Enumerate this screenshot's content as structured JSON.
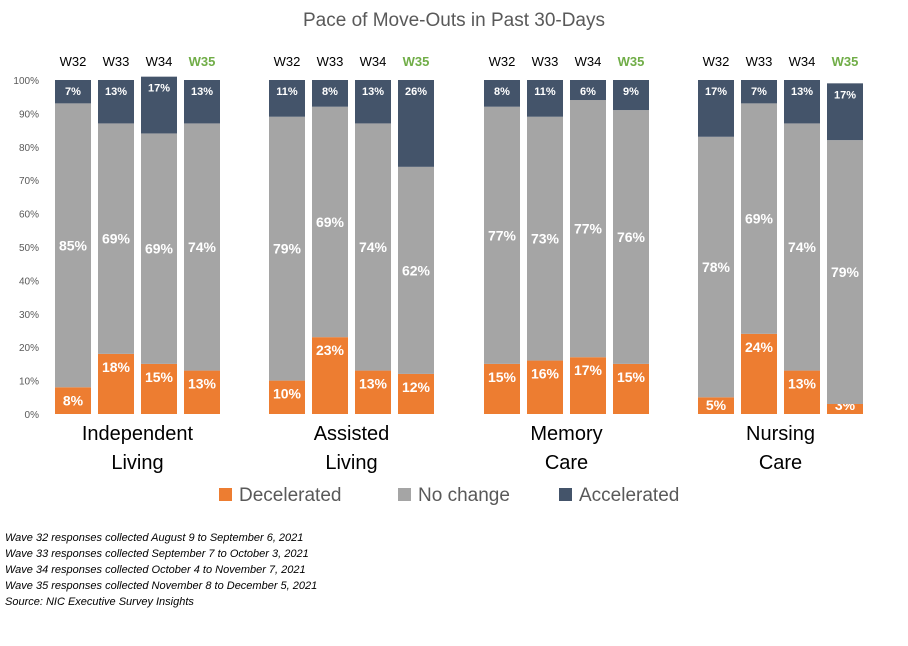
{
  "chart_data": {
    "type": "stacked-bar",
    "title": "Pace of Move-Outs in Past 30-Days",
    "ylim": [
      0,
      100
    ],
    "yticks": [
      "0%",
      "10%",
      "20%",
      "30%",
      "40%",
      "50%",
      "60%",
      "70%",
      "80%",
      "90%",
      "100%"
    ],
    "series": [
      {
        "name": "Decelerated",
        "color": "#ED7D31"
      },
      {
        "name": "No change",
        "color": "#A5A5A5"
      },
      {
        "name": "Accelerated",
        "color": "#44546A"
      }
    ],
    "groups": [
      {
        "label_lines": [
          "Independent",
          "Living"
        ],
        "bars": [
          {
            "wave": "W32",
            "values": [
              8,
              85,
              7
            ],
            "labels": [
              "8%",
              "85%",
              "7%"
            ]
          },
          {
            "wave": "W33",
            "values": [
              18,
              69,
              13
            ],
            "labels": [
              "18%",
              "69%",
              "13%"
            ]
          },
          {
            "wave": "W34",
            "values": [
              15,
              69,
              17
            ],
            "labels": [
              "15%",
              "69%",
              "17%"
            ]
          },
          {
            "wave": "W35",
            "values": [
              13,
              74,
              13
            ],
            "labels": [
              "13%",
              "74%",
              "13%"
            ]
          }
        ]
      },
      {
        "label_lines": [
          "Assisted",
          "Living"
        ],
        "bars": [
          {
            "wave": "W32",
            "values": [
              10,
              79,
              11
            ],
            "labels": [
              "10%",
              "79%",
              "11%"
            ]
          },
          {
            "wave": "W33",
            "values": [
              23,
              69,
              8
            ],
            "labels": [
              "23%",
              "69%",
              "8%"
            ]
          },
          {
            "wave": "W34",
            "values": [
              13,
              74,
              13
            ],
            "labels": [
              "13%",
              "74%",
              "13%"
            ]
          },
          {
            "wave": "W35",
            "values": [
              12,
              62,
              26
            ],
            "labels": [
              "12%",
              "62%",
              "26%"
            ]
          }
        ]
      },
      {
        "label_lines": [
          "Memory",
          "Care"
        ],
        "bars": [
          {
            "wave": "W32",
            "values": [
              15,
              77,
              8
            ],
            "labels": [
              "15%",
              "77%",
              "8%"
            ]
          },
          {
            "wave": "W33",
            "values": [
              16,
              73,
              11
            ],
            "labels": [
              "16%",
              "73%",
              "11%"
            ]
          },
          {
            "wave": "W34",
            "values": [
              17,
              77,
              6
            ],
            "labels": [
              "17%",
              "77%",
              "6%"
            ]
          },
          {
            "wave": "W35",
            "values": [
              15,
              76,
              9
            ],
            "labels": [
              "15%",
              "76%",
              "9%"
            ]
          }
        ]
      },
      {
        "label_lines": [
          "Nursing",
          "Care"
        ],
        "bars": [
          {
            "wave": "W32",
            "values": [
              5,
              78,
              17
            ],
            "labels": [
              "5%",
              "78%",
              "17%"
            ]
          },
          {
            "wave": "W33",
            "values": [
              24,
              69,
              7
            ],
            "labels": [
              "24%",
              "69%",
              "7%"
            ]
          },
          {
            "wave": "W34",
            "values": [
              13,
              74,
              13
            ],
            "labels": [
              "13%",
              "74%",
              "13%"
            ]
          },
          {
            "wave": "W35",
            "values": [
              3,
              79,
              17
            ],
            "labels": [
              "3%",
              "79%",
              "17%"
            ]
          }
        ]
      }
    ],
    "highlight_wave": "W35",
    "highlight_color": "#70AD47",
    "legend_position": "bottom"
  },
  "notes": [
    "Wave 32 responses collected August 9 to September 6, 2021",
    "Wave 33 responses collected September 7 to October 3, 2021",
    "Wave 34 responses collected October 4 to November 7, 2021",
    "Wave 35 responses collected November 8 to December 5, 2021",
    "Source: NIC Executive Survey Insights"
  ]
}
